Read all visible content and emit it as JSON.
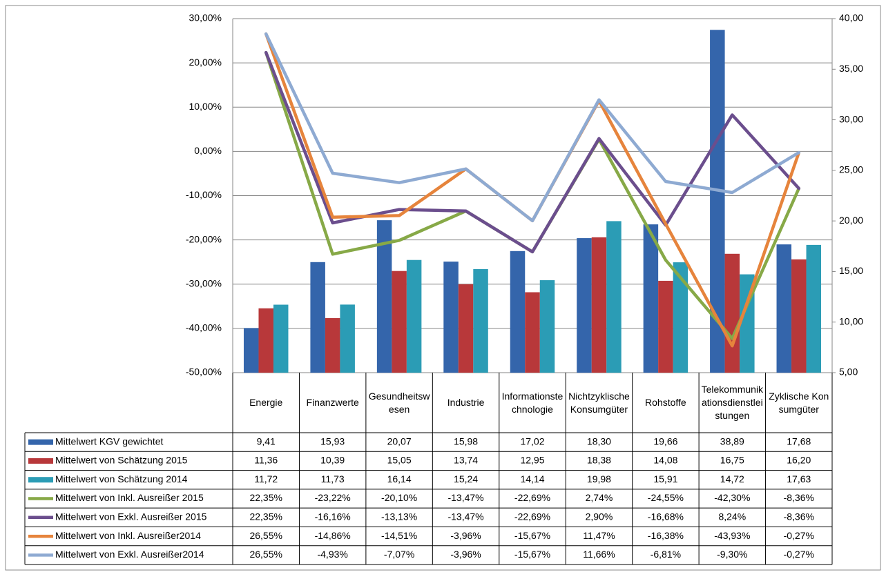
{
  "chart_data": {
    "type": "combo",
    "categories": [
      "Energie",
      "Finanzwerte",
      "Gesundheitswesen",
      "Industrie",
      "Informationstechnologie",
      "Nichtzyklische Konsumgüter",
      "Rohstoffe",
      "Telekommunikationsdienstleistungen",
      "Zyklische Konsumgüter"
    ],
    "ylim": [
      -50,
      30
    ],
    "yticks": [
      {
        "value": -50,
        "label": "-50,00%"
      },
      {
        "value": -40,
        "label": "-40,00%"
      },
      {
        "value": -30,
        "label": "-30,00%"
      },
      {
        "value": -20,
        "label": "-20,00%"
      },
      {
        "value": -10,
        "label": "-10,00%"
      },
      {
        "value": 0,
        "label": "0,00%"
      },
      {
        "value": 10,
        "label": "10,00%"
      },
      {
        "value": 20,
        "label": "20,00%"
      },
      {
        "value": 30,
        "label": "30,00%"
      }
    ],
    "y2lim": [
      5,
      40
    ],
    "y2ticks": [
      {
        "value": 5,
        "label": "5,00"
      },
      {
        "value": 10,
        "label": "10,00"
      },
      {
        "value": 15,
        "label": "15,00"
      },
      {
        "value": 20,
        "label": "20,00"
      },
      {
        "value": 25,
        "label": "25,00"
      },
      {
        "value": 30,
        "label": "30,00"
      },
      {
        "value": 35,
        "label": "35,00"
      },
      {
        "value": 40,
        "label": "40,00"
      }
    ],
    "grid": true,
    "series": [
      {
        "name": "Mittelwert KGV gewichtet",
        "kind": "bar",
        "axis": "y2",
        "color": "#3465ab",
        "values": [
          9.41,
          15.93,
          20.07,
          15.98,
          17.02,
          18.3,
          19.66,
          38.89,
          17.68
        ],
        "value_labels": [
          "9,41",
          "15,93",
          "20,07",
          "15,98",
          "17,02",
          "18,30",
          "19,66",
          "38,89",
          "17,68"
        ]
      },
      {
        "name": "Mittelwert von Schätzung 2015",
        "kind": "bar",
        "axis": "y2",
        "color": "#b8383a",
        "values": [
          11.36,
          10.39,
          15.05,
          13.74,
          12.95,
          18.38,
          14.08,
          16.75,
          16.2
        ],
        "value_labels": [
          "11,36",
          "10,39",
          "15,05",
          "13,74",
          "12,95",
          "18,38",
          "14,08",
          "16,75",
          "16,20"
        ]
      },
      {
        "name": "Mittelwert von Schätzung 2014",
        "kind": "bar",
        "axis": "y2",
        "color": "#2b9cb5",
        "values": [
          11.72,
          11.73,
          16.14,
          15.24,
          14.14,
          19.98,
          15.91,
          14.72,
          17.63
        ],
        "value_labels": [
          "11,72",
          "11,73",
          "16,14",
          "15,24",
          "14,14",
          "19,98",
          "15,91",
          "14,72",
          "17,63"
        ]
      },
      {
        "name": "Mittelwert von Inkl. Ausreißer 2015",
        "kind": "line",
        "color": "#87a947",
        "values": [
          22.35,
          -23.22,
          -20.1,
          -13.47,
          -22.69,
          2.74,
          -24.55,
          -42.3,
          -8.36
        ],
        "value_labels": [
          "22,35%",
          "-23,22%",
          "-20,10%",
          "-13,47%",
          "-22,69%",
          "2,74%",
          "-24,55%",
          "-42,30%",
          "-8,36%"
        ]
      },
      {
        "name": "Mittelwert von Exkl. Ausreißer 2015",
        "kind": "line",
        "color": "#6b4e8d",
        "values": [
          22.35,
          -16.16,
          -13.13,
          -13.47,
          -22.69,
          2.9,
          -16.68,
          8.24,
          -8.36
        ],
        "value_labels": [
          "22,35%",
          "-16,16%",
          "-13,13%",
          "-13,47%",
          "-22,69%",
          "2,90%",
          "-16,68%",
          "8,24%",
          "-8,36%"
        ]
      },
      {
        "name": "Mittelwert von Inkl. Ausreißer2014",
        "kind": "line",
        "color": "#e6843c",
        "values": [
          26.55,
          -14.86,
          -14.51,
          -3.96,
          -15.67,
          11.47,
          -16.38,
          -43.93,
          -0.27
        ],
        "value_labels": [
          "26,55%",
          "-14,86%",
          "-14,51%",
          "-3,96%",
          "-15,67%",
          "11,47%",
          "-16,38%",
          "-43,93%",
          "-0,27%"
        ]
      },
      {
        "name": "Mittelwert von Exkl. Ausreißer2014",
        "kind": "line",
        "color": "#8eaad2",
        "values": [
          26.55,
          -4.93,
          -7.07,
          -3.96,
          -15.67,
          11.66,
          -6.81,
          -9.3,
          -0.27
        ],
        "value_labels": [
          "26,55%",
          "-4,93%",
          "-7,07%",
          "-3,96%",
          "-15,67%",
          "11,66%",
          "-6,81%",
          "-9,30%",
          "-0,27%"
        ]
      }
    ]
  }
}
